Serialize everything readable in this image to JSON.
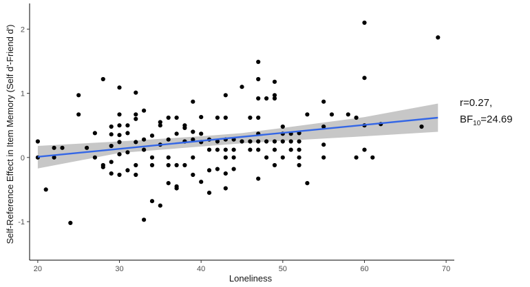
{
  "chart_data": {
    "type": "scatter",
    "title": "",
    "xlabel": "Loneliness",
    "ylabel": "Self-Reference Effect in Item Memory (Self d'-Friend d')",
    "xlim": [
      19,
      71
    ],
    "ylim": [
      -1.6,
      2.4
    ],
    "xticks": [
      "20",
      "30",
      "40",
      "50",
      "60",
      "70"
    ],
    "yticks": [
      "-1",
      "0",
      "1",
      "2"
    ],
    "grid": false,
    "point_color": "#000000",
    "fit_line": {
      "x": [
        20,
        69
      ],
      "y": [
        0.01,
        0.62
      ],
      "color": "#3366e6"
    },
    "confidence_band": {
      "x": [
        20,
        30,
        40,
        45,
        50,
        60,
        69
      ],
      "lower": [
        -0.17,
        0.07,
        0.17,
        0.22,
        0.26,
        0.33,
        0.4
      ],
      "upper": [
        0.18,
        0.25,
        0.33,
        0.38,
        0.46,
        0.63,
        0.84
      ],
      "color": "#bdbdbd"
    },
    "points": [
      [
        20,
        0.25
      ],
      [
        20,
        0.0
      ],
      [
        21,
        -0.5
      ],
      [
        22,
        0.15
      ],
      [
        22,
        0.0
      ],
      [
        23,
        0.15
      ],
      [
        24,
        -1.02
      ],
      [
        25,
        0.97
      ],
      [
        25,
        0.67
      ],
      [
        26,
        0.15
      ],
      [
        27,
        0.38
      ],
      [
        27,
        0.0
      ],
      [
        28,
        1.22
      ],
      [
        28,
        -0.12
      ],
      [
        28,
        -0.15
      ],
      [
        29,
        0.48
      ],
      [
        29,
        0.36
      ],
      [
        29,
        0.18
      ],
      [
        29,
        -0.07
      ],
      [
        29,
        -0.25
      ],
      [
        30,
        1.09
      ],
      [
        30,
        0.67
      ],
      [
        30,
        0.5
      ],
      [
        30,
        0.35
      ],
      [
        30,
        0.24
      ],
      [
        30,
        0.05
      ],
      [
        30,
        -0.27
      ],
      [
        31,
        0.5
      ],
      [
        31,
        0.38
      ],
      [
        31,
        0.08
      ],
      [
        31,
        -0.2
      ],
      [
        32,
        1.01
      ],
      [
        32,
        0.67
      ],
      [
        32,
        0.6
      ],
      [
        32,
        0.24
      ],
      [
        32,
        -0.12
      ],
      [
        32,
        -0.27
      ],
      [
        33,
        0.73
      ],
      [
        33,
        0.28
      ],
      [
        33,
        0.12
      ],
      [
        33,
        -0.97
      ],
      [
        34,
        0.34
      ],
      [
        34,
        0.0
      ],
      [
        34,
        -0.12
      ],
      [
        34,
        -0.68
      ],
      [
        35,
        0.55
      ],
      [
        35,
        0.5
      ],
      [
        35,
        0.2
      ],
      [
        35,
        -0.75
      ],
      [
        36,
        0.62
      ],
      [
        36,
        0.28
      ],
      [
        36,
        0.0
      ],
      [
        36,
        -0.12
      ],
      [
        36,
        -0.4
      ],
      [
        37,
        0.62
      ],
      [
        37,
        0.37
      ],
      [
        37,
        -0.12
      ],
      [
        37,
        -0.45
      ],
      [
        37,
        -0.48
      ],
      [
        38,
        0.5
      ],
      [
        38,
        0.46
      ],
      [
        38,
        0.25
      ],
      [
        38,
        -0.12
      ],
      [
        39,
        0.87
      ],
      [
        39,
        0.4
      ],
      [
        39,
        0.28
      ],
      [
        39,
        0.0
      ],
      [
        39,
        -0.27
      ],
      [
        40,
        0.63
      ],
      [
        40,
        0.37
      ],
      [
        40,
        0.24
      ],
      [
        40,
        -0.38
      ],
      [
        41,
        0.28
      ],
      [
        41,
        0.12
      ],
      [
        41,
        -0.2
      ],
      [
        41,
        -0.55
      ],
      [
        42,
        0.62
      ],
      [
        42,
        0.25
      ],
      [
        42,
        0.12
      ],
      [
        42,
        -0.18
      ],
      [
        43,
        0.97
      ],
      [
        43,
        0.62
      ],
      [
        43,
        0.28
      ],
      [
        43,
        0.12
      ],
      [
        43,
        0.0
      ],
      [
        43,
        -0.25
      ],
      [
        43,
        -0.48
      ],
      [
        44,
        0.28
      ],
      [
        44,
        0.12
      ],
      [
        44,
        0.0
      ],
      [
        44,
        -0.18
      ],
      [
        45,
        1.1
      ],
      [
        45,
        0.25
      ],
      [
        46,
        0.62
      ],
      [
        46,
        0.25
      ],
      [
        46,
        0.12
      ],
      [
        47,
        1.49
      ],
      [
        47,
        1.22
      ],
      [
        47,
        0.92
      ],
      [
        47,
        0.62
      ],
      [
        47,
        0.37
      ],
      [
        47,
        0.25
      ],
      [
        47,
        0.12
      ],
      [
        47,
        -0.33
      ],
      [
        48,
        0.92
      ],
      [
        48,
        0.25
      ],
      [
        48,
        0.0
      ],
      [
        49,
        1.18
      ],
      [
        49,
        0.97
      ],
      [
        49,
        0.92
      ],
      [
        49,
        0.25
      ],
      [
        49,
        0.12
      ],
      [
        49,
        -0.12
      ],
      [
        50,
        0.48
      ],
      [
        50,
        0.37
      ],
      [
        50,
        0.25
      ],
      [
        50,
        0.0
      ],
      [
        51,
        0.37
      ],
      [
        51,
        0.25
      ],
      [
        51,
        0.12
      ],
      [
        52,
        0.38
      ],
      [
        52,
        0.25
      ],
      [
        52,
        0.12
      ],
      [
        52,
        0.0
      ],
      [
        52,
        -0.12
      ],
      [
        53,
        0.67
      ],
      [
        53,
        -0.4
      ],
      [
        55,
        0.87
      ],
      [
        55,
        0.48
      ],
      [
        55,
        0.2
      ],
      [
        55,
        0.0
      ],
      [
        56,
        0.67
      ],
      [
        58,
        0.67
      ],
      [
        59,
        0.62
      ],
      [
        59,
        0.0
      ],
      [
        60,
        2.1
      ],
      [
        60,
        1.24
      ],
      [
        60,
        0.5
      ],
      [
        60,
        0.12
      ],
      [
        61,
        0.0
      ],
      [
        62,
        0.52
      ],
      [
        67,
        0.48
      ],
      [
        69,
        1.87
      ]
    ]
  },
  "annotation": {
    "r_text": "r=0.27,",
    "bf_prefix": "BF",
    "bf_sub": "10",
    "bf_value": "=24.69"
  }
}
